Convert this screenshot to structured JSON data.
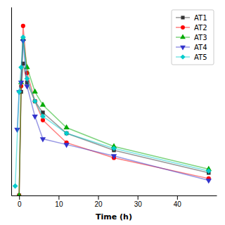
{
  "chart_data": {
    "type": "line",
    "xlabel": "Time (h)",
    "xlim": [
      -2,
      50
    ],
    "xticks": [
      0,
      10,
      20,
      30,
      40
    ],
    "ylim": [
      0,
      100
    ],
    "tick_labels": "x",
    "legend": "upper-right",
    "series": [
      {
        "name": "AT1",
        "color": "#333333",
        "marker": "square",
        "x": [
          0,
          0.5,
          1,
          2,
          4,
          6,
          12,
          24,
          48
        ],
        "values": [
          0,
          55,
          70,
          60,
          50,
          44,
          33,
          24,
          12
        ]
      },
      {
        "name": "AT2",
        "color": "#ff0000",
        "marker": "circle",
        "x": [
          0,
          0.5,
          1,
          2,
          4,
          6,
          12,
          24,
          48
        ],
        "values": [
          0,
          58,
          90,
          65,
          50,
          40,
          28,
          20,
          9
        ]
      },
      {
        "name": "AT3",
        "color": "#00aa00",
        "marker": "triangle-up",
        "x": [
          0,
          0.5,
          1,
          2,
          4,
          6,
          12,
          24,
          48
        ],
        "values": [
          0,
          60,
          83,
          68,
          55,
          48,
          36,
          26,
          14
        ]
      },
      {
        "name": "AT4",
        "color": "#3333cc",
        "marker": "triangle-down",
        "x": [
          -0.5,
          0,
          0.5,
          1,
          2,
          4,
          6,
          12,
          24,
          48
        ],
        "values": [
          35,
          55,
          60,
          82,
          58,
          42,
          30,
          27,
          21,
          8
        ]
      },
      {
        "name": "AT5",
        "color": "#00cccc",
        "marker": "diamond",
        "x": [
          -1,
          0,
          0.5,
          1,
          2,
          4,
          6,
          12,
          24,
          48
        ],
        "values": [
          5,
          55,
          68,
          84,
          62,
          50,
          42,
          33,
          25,
          13
        ]
      }
    ]
  }
}
